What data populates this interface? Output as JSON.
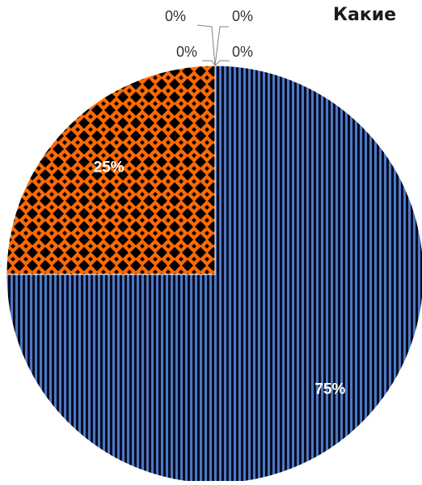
{
  "chart_data": {
    "type": "pie",
    "title": "Какие",
    "slices": [
      {
        "label": "75%",
        "value": 75,
        "pattern": "vertical-stripes",
        "color": "#4a79c6",
        "stroke": "#0a0a1a"
      },
      {
        "label": "25%",
        "value": 25,
        "pattern": "checker-diamond",
        "color": "#ff6a00",
        "stroke": "#000000"
      },
      {
        "label": "0%",
        "value": 0
      },
      {
        "label": "0%",
        "value": 0
      },
      {
        "label": "0%",
        "value": 0
      },
      {
        "label": "0%",
        "value": 0
      }
    ],
    "start_angle_deg": 0,
    "direction": "clockwise",
    "legend": "none",
    "grid": false
  }
}
